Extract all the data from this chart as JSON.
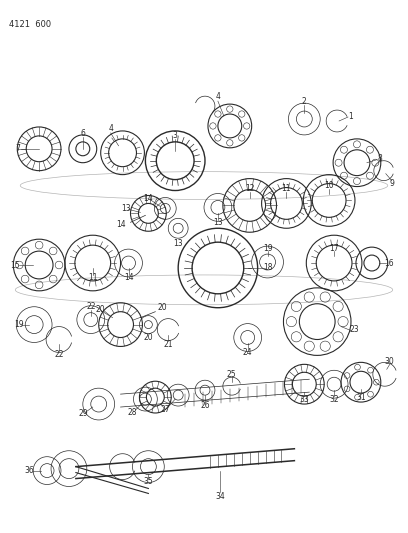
{
  "title": "4121  600",
  "bg_color": "#ffffff",
  "line_color": "#2a2a2a",
  "fig_width": 4.08,
  "fig_height": 5.33,
  "dpi": 100
}
